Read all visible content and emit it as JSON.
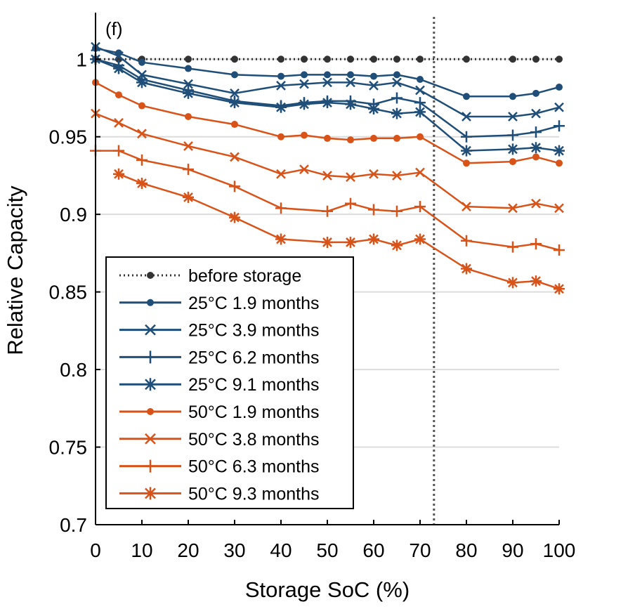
{
  "chart_data": {
    "type": "line",
    "panel_label": "(f)",
    "xlabel": "Storage SoC (%)",
    "ylabel": "Relative Capacity",
    "xlim": [
      0,
      100
    ],
    "ylim": [
      0.7,
      1.03
    ],
    "xticks": [
      "0",
      "10",
      "20",
      "30",
      "40",
      "50",
      "60",
      "70",
      "80",
      "90",
      "100"
    ],
    "yticks": [
      "0.7",
      "0.75",
      "0.8",
      "0.85",
      "0.9",
      "0.95",
      "1"
    ],
    "grid": "horizontal",
    "vertical_reference_line_x": 73,
    "legend_placement": "bottom-left",
    "x": [
      0,
      5,
      10,
      20,
      30,
      40,
      45,
      50,
      55,
      60,
      65,
      70,
      80,
      90,
      95,
      100
    ],
    "series": [
      {
        "name": "before storage",
        "color": "#333333",
        "marker": "dot",
        "line": "dotted",
        "values": [
          1,
          1,
          1,
          1,
          1,
          1,
          1,
          1,
          1,
          1,
          1,
          1,
          1,
          1,
          1,
          1
        ]
      },
      {
        "name": "25°C  1.9 months",
        "color": "#1f4e79",
        "marker": "dot",
        "line": "solid",
        "values": [
          1.007,
          1.004,
          0.998,
          0.994,
          0.99,
          0.989,
          0.99,
          0.99,
          0.99,
          0.989,
          0.99,
          0.987,
          0.976,
          0.976,
          0.978,
          0.982
        ]
      },
      {
        "name": "25°C  3.9 months",
        "color": "#1f4e79",
        "marker": "x",
        "line": "solid",
        "values": [
          1.008,
          1.002,
          0.99,
          0.984,
          0.978,
          0.983,
          0.984,
          0.985,
          0.985,
          0.983,
          0.985,
          0.98,
          0.963,
          0.963,
          0.965,
          0.969
        ]
      },
      {
        "name": "25°C  6.2 months",
        "color": "#1f4e79",
        "marker": "plus",
        "line": "solid",
        "values": [
          1.0,
          0.996,
          0.987,
          0.98,
          0.973,
          0.97,
          0.972,
          0.973,
          0.973,
          0.971,
          0.975,
          0.972,
          0.95,
          0.951,
          0.953,
          0.957
        ]
      },
      {
        "name": "25°C  9.1 months",
        "color": "#1f4e79",
        "marker": "asterisk",
        "line": "solid",
        "values": [
          1.0,
          0.994,
          0.985,
          0.978,
          0.972,
          0.969,
          0.971,
          0.972,
          0.971,
          0.968,
          0.965,
          0.966,
          0.941,
          0.942,
          0.943,
          0.941
        ]
      },
      {
        "name": "50°C  1.9 months",
        "color": "#d95319",
        "marker": "dot",
        "line": "solid",
        "values": [
          0.985,
          0.977,
          0.97,
          0.963,
          0.958,
          0.95,
          0.951,
          0.949,
          0.948,
          0.949,
          0.949,
          0.95,
          0.933,
          0.934,
          0.937,
          0.933
        ]
      },
      {
        "name": "50°C  3.8 months",
        "color": "#d95319",
        "marker": "x",
        "line": "solid",
        "values": [
          0.965,
          0.959,
          0.952,
          0.944,
          0.937,
          0.926,
          0.929,
          0.925,
          0.924,
          0.926,
          0.925,
          0.927,
          0.905,
          0.904,
          0.907,
          0.904
        ]
      },
      {
        "name": "50°C  6.3 months",
        "color": "#d95319",
        "marker": "plus",
        "line": "solid",
        "values": [
          0.941,
          0.941,
          0.935,
          0.929,
          0.918,
          0.904,
          null,
          0.902,
          0.907,
          0.903,
          0.902,
          0.905,
          0.883,
          0.879,
          0.881,
          0.877
        ]
      },
      {
        "name": "50°C  9.3 months",
        "color": "#d95319",
        "marker": "asterisk",
        "line": "solid",
        "values": [
          null,
          0.926,
          0.92,
          0.911,
          0.898,
          0.884,
          null,
          0.882,
          0.882,
          0.884,
          0.88,
          0.884,
          0.865,
          0.856,
          0.857,
          0.852
        ]
      }
    ]
  }
}
